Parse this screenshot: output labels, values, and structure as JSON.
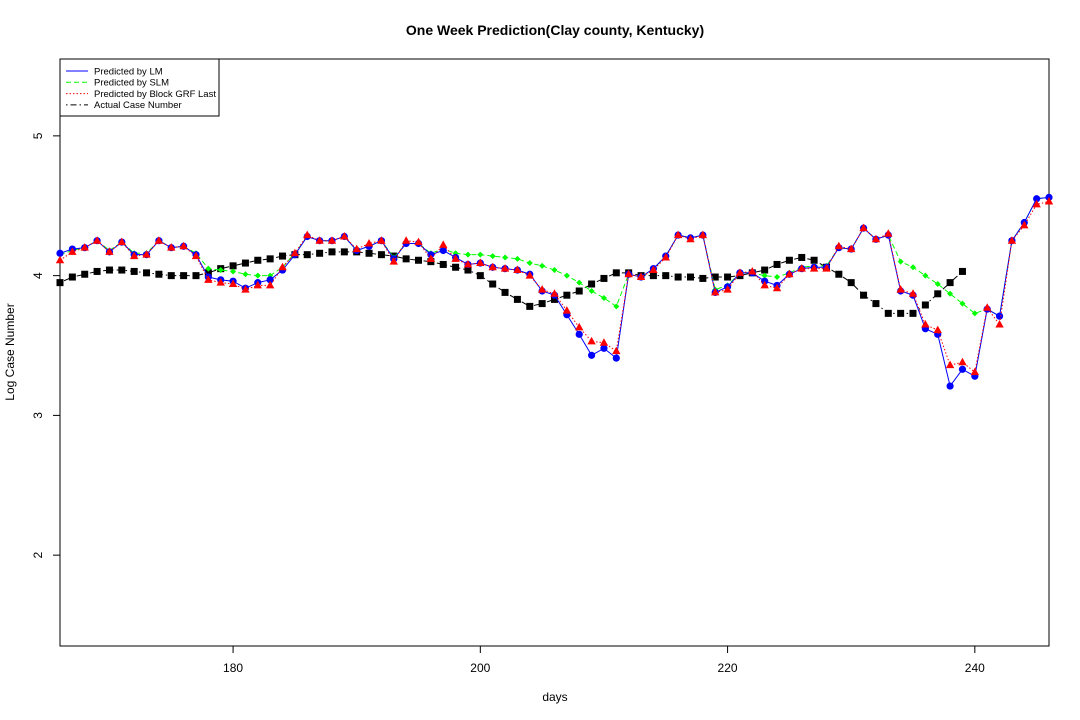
{
  "chart_data": {
    "type": "line",
    "title": "One Week Prediction(Clay county, Kentucky)",
    "xlabel": "days",
    "ylabel": "Log Case Number",
    "xlim": [
      166,
      246
    ],
    "ylim": [
      1.35,
      5.55
    ],
    "x_ticks": [
      180,
      200,
      220,
      240
    ],
    "y_ticks": [
      2,
      3,
      4,
      5
    ],
    "legend_position": "top-left",
    "x": [
      166,
      167,
      168,
      169,
      170,
      171,
      172,
      173,
      174,
      175,
      176,
      177,
      178,
      179,
      180,
      181,
      182,
      183,
      184,
      185,
      186,
      187,
      188,
      189,
      190,
      191,
      192,
      193,
      194,
      195,
      196,
      197,
      198,
      199,
      200,
      201,
      202,
      203,
      204,
      205,
      206,
      207,
      208,
      209,
      210,
      211,
      212,
      213,
      214,
      215,
      216,
      217,
      218,
      219,
      220,
      221,
      222,
      223,
      224,
      225,
      226,
      227,
      228,
      229,
      230,
      231,
      232,
      233,
      234,
      235,
      236,
      237,
      238,
      239,
      240,
      241,
      242,
      243,
      244,
      245,
      246
    ],
    "series": [
      {
        "name": "Predicted by LM",
        "color": "#0000ff",
        "line_style": "solid",
        "marker": "circle",
        "values": [
          4.16,
          4.19,
          4.2,
          4.25,
          4.17,
          4.24,
          4.15,
          4.15,
          4.25,
          4.2,
          4.21,
          4.15,
          3.99,
          3.97,
          3.96,
          3.91,
          3.95,
          3.97,
          4.04,
          4.15,
          4.28,
          4.25,
          4.25,
          4.28,
          4.18,
          4.21,
          4.25,
          4.12,
          4.23,
          4.23,
          4.15,
          4.18,
          4.13,
          4.08,
          4.09,
          4.06,
          4.05,
          4.04,
          4.01,
          3.89,
          3.86,
          3.72,
          3.58,
          3.43,
          3.48,
          3.41,
          4.01,
          3.99,
          4.05,
          4.14,
          4.29,
          4.27,
          4.29,
          3.88,
          3.92,
          4.02,
          4.02,
          3.96,
          3.93,
          4.01,
          4.05,
          4.06,
          4.06,
          4.2,
          4.19,
          4.34,
          4.26,
          4.29,
          3.89,
          3.86,
          3.62,
          3.58,
          3.21,
          3.33,
          3.28,
          3.76,
          3.71,
          4.25,
          4.38,
          4.55,
          4.56
        ]
      },
      {
        "name": "Predicted by SLM",
        "color": "#00ff00",
        "line_style": "dashed",
        "marker": "diamond",
        "values": [
          4.15,
          4.18,
          4.2,
          4.25,
          4.18,
          4.24,
          4.16,
          4.16,
          4.25,
          4.2,
          4.21,
          4.16,
          4.05,
          4.04,
          4.03,
          4.01,
          4.0,
          4.0,
          4.06,
          4.16,
          4.28,
          4.25,
          4.25,
          4.28,
          4.18,
          4.21,
          4.25,
          4.13,
          4.23,
          4.23,
          4.16,
          4.19,
          4.16,
          4.15,
          4.15,
          4.14,
          4.13,
          4.12,
          4.09,
          4.07,
          4.04,
          4.0,
          3.95,
          3.89,
          3.84,
          3.78,
          4.01,
          3.99,
          4.05,
          4.14,
          4.29,
          4.27,
          4.29,
          3.9,
          3.93,
          4.02,
          4.02,
          4.0,
          3.99,
          4.02,
          4.06,
          4.07,
          4.07,
          4.2,
          4.19,
          4.34,
          4.26,
          4.29,
          4.1,
          4.06,
          4.0,
          3.94,
          3.87,
          3.8,
          3.73,
          3.76,
          3.71,
          4.25,
          4.38,
          4.55,
          4.56
        ]
      },
      {
        "name": "Predicted by Block GRF Last",
        "color": "#ff0000",
        "line_style": "dotted",
        "marker": "triangle",
        "values": [
          4.11,
          4.17,
          4.2,
          4.25,
          4.17,
          4.24,
          4.14,
          4.15,
          4.25,
          4.2,
          4.21,
          4.14,
          3.97,
          3.95,
          3.94,
          3.9,
          3.93,
          3.93,
          4.06,
          4.16,
          4.29,
          4.25,
          4.25,
          4.28,
          4.19,
          4.23,
          4.25,
          4.1,
          4.25,
          4.24,
          4.12,
          4.22,
          4.12,
          4.08,
          4.09,
          4.06,
          4.05,
          4.04,
          4.0,
          3.9,
          3.87,
          3.75,
          3.63,
          3.53,
          3.52,
          3.46,
          4.01,
          3.99,
          4.04,
          4.13,
          4.29,
          4.26,
          4.29,
          3.88,
          3.9,
          4.02,
          4.03,
          3.93,
          3.91,
          4.01,
          4.05,
          4.05,
          4.05,
          4.21,
          4.19,
          4.34,
          4.26,
          4.3,
          3.9,
          3.87,
          3.65,
          3.61,
          3.36,
          3.38,
          3.31,
          3.77,
          3.65,
          4.25,
          4.36,
          4.51,
          4.53
        ]
      },
      {
        "name": "Actual Case Number",
        "color": "#000000",
        "line_style": "dotdash",
        "marker": "square",
        "values": [
          3.95,
          3.99,
          4.01,
          4.03,
          4.04,
          4.04,
          4.03,
          4.02,
          4.01,
          4.0,
          4.0,
          4.0,
          4.02,
          4.05,
          4.07,
          4.09,
          4.11,
          4.12,
          4.14,
          4.15,
          4.15,
          4.16,
          4.17,
          4.17,
          4.17,
          4.16,
          4.15,
          4.14,
          4.12,
          4.11,
          4.1,
          4.08,
          4.06,
          4.04,
          4.0,
          3.94,
          3.88,
          3.83,
          3.78,
          3.8,
          3.83,
          3.86,
          3.89,
          3.94,
          3.98,
          4.02,
          4.02,
          4.0,
          4.0,
          4.0,
          3.99,
          3.99,
          3.98,
          3.99,
          3.99,
          4.0,
          4.02,
          4.04,
          4.08,
          4.11,
          4.13,
          4.11,
          4.06,
          4.01,
          3.95,
          3.86,
          3.8,
          3.73,
          3.73,
          3.73,
          3.79,
          3.87,
          3.95,
          4.03,
          null,
          null,
          null,
          null,
          null,
          null,
          null
        ]
      }
    ]
  }
}
